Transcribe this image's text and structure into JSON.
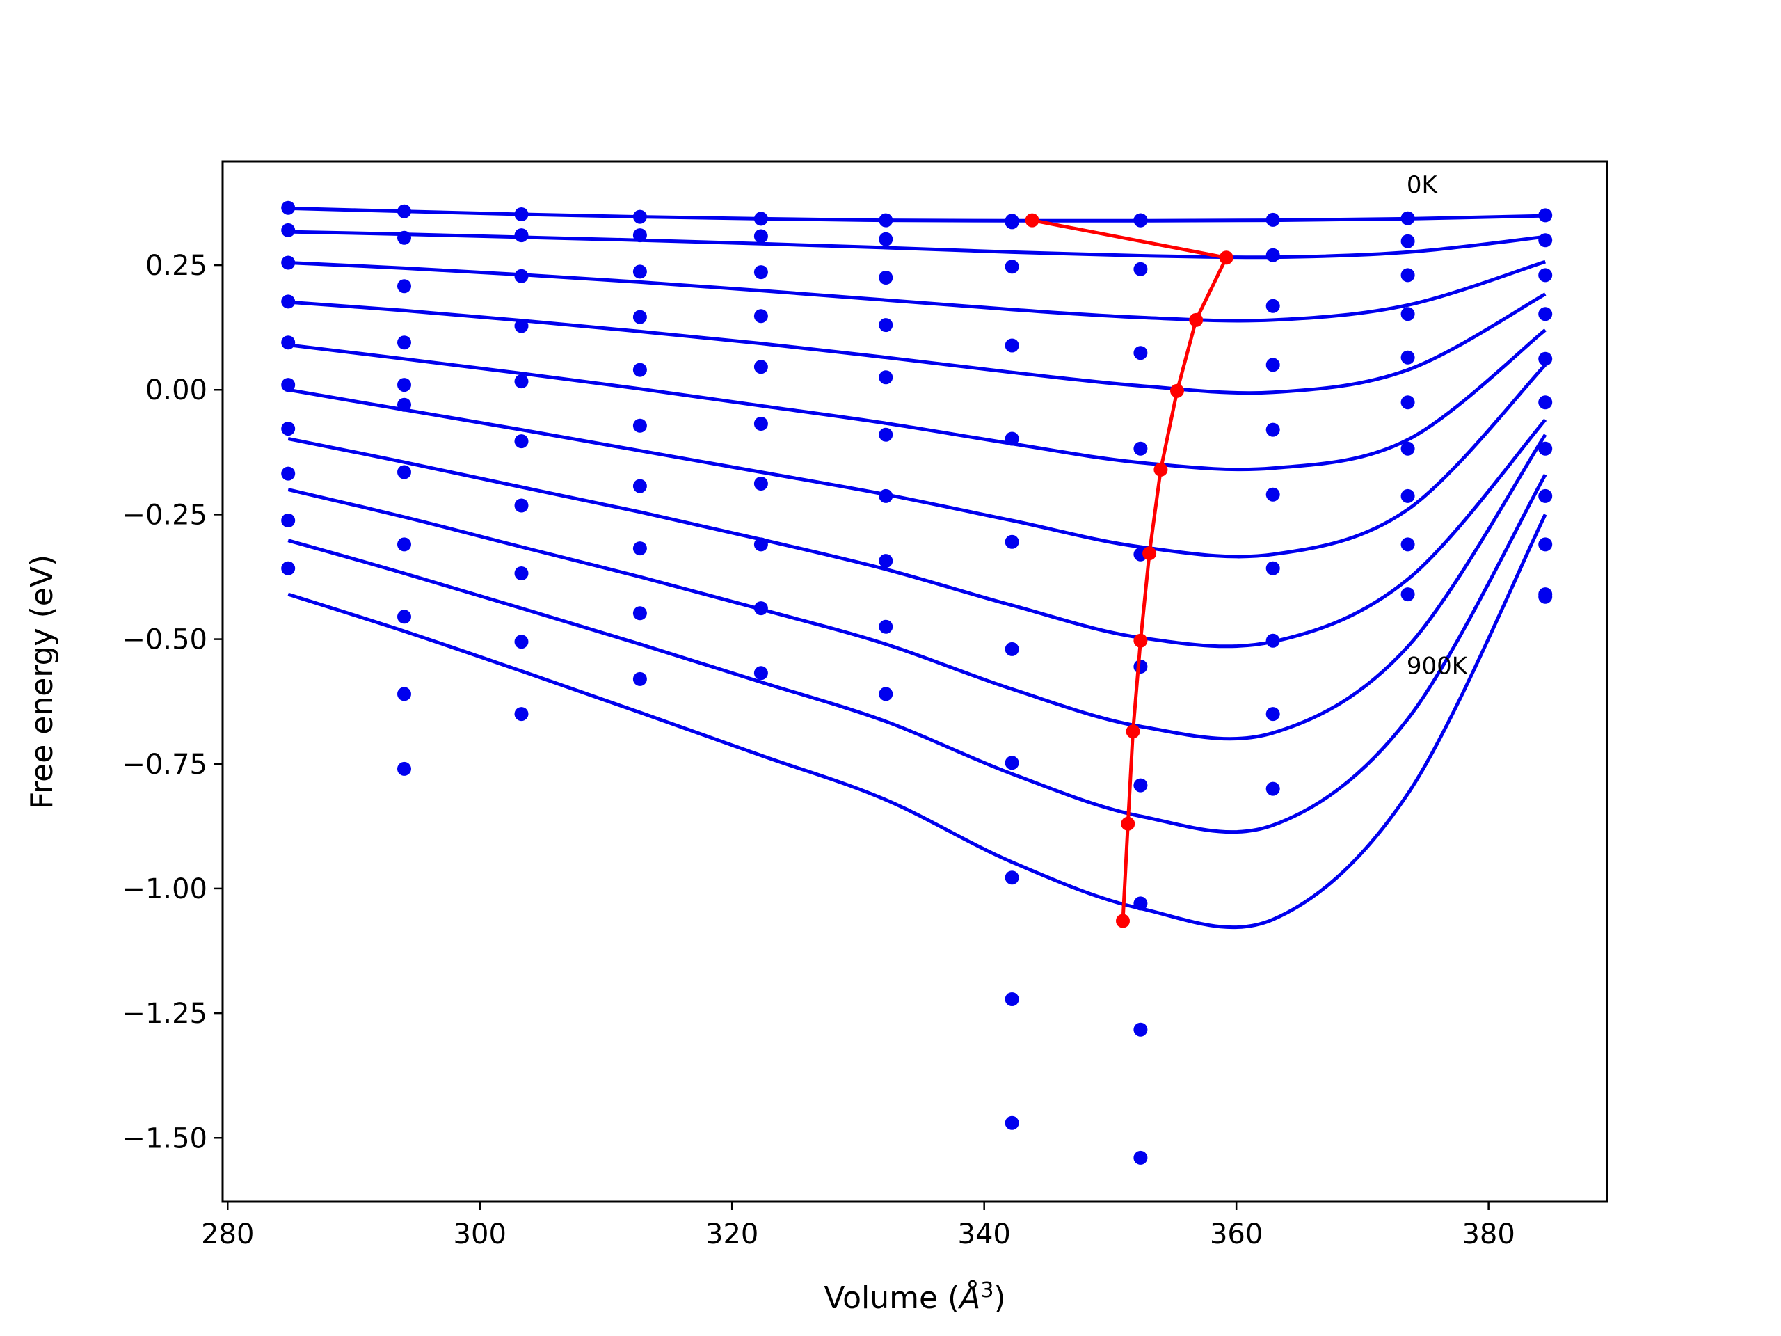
{
  "chart_data": {
    "type": "scatter",
    "xlabel": "Volume (",
    "xlabel_unit": "Å",
    "xlabel_exp": "3",
    "xlabel_close": ")",
    "ylabel": "Free energy (eV)",
    "xlim": [
      279.6,
      389.4
    ],
    "ylim": [
      -1.628,
      0.458
    ],
    "xticks": [
      280,
      300,
      320,
      340,
      360,
      380
    ],
    "xtick_labels": [
      "280",
      "300",
      "320",
      "340",
      "360",
      "380"
    ],
    "yticks": [
      0.25,
      0.0,
      -0.25,
      -0.5,
      -0.75,
      -1.0,
      -1.25,
      -1.5
    ],
    "ytick_labels": [
      "0.25",
      "0.00",
      "−0.25",
      "−0.50",
      "−0.75",
      "−1.00",
      "−1.25",
      "−1.50"
    ],
    "grid": false,
    "annotations": [
      {
        "text": "0K",
        "x": 373.5,
        "y": 0.395
      },
      {
        "text": "900K",
        "x": 373.5,
        "y": -0.57
      }
    ],
    "x": [
      284.8,
      294.0,
      303.3,
      312.7,
      322.3,
      332.2,
      342.2,
      352.4,
      362.9,
      373.6,
      384.5
    ],
    "series": [
      {
        "values": [
          0.365,
          0.358,
          0.352,
          0.347,
          0.343,
          0.34,
          0.339,
          0.34,
          0.341,
          0.344,
          0.35
        ],
        "curve_x": [
          284.8,
          294.0,
          303.3,
          312.7,
          322.3,
          332.2,
          342.2,
          352.4,
          362.9,
          373.6,
          384.5
        ],
        "curve_y": [
          0.364,
          0.358,
          0.352,
          0.347,
          0.343,
          0.34,
          0.339,
          0.339,
          0.34,
          0.343,
          0.349
        ]
      },
      {
        "values": [
          0.32,
          0.305,
          0.31,
          0.31,
          0.308,
          0.302,
          0.336,
          0.34,
          0.27,
          0.298,
          0.3
        ],
        "curve_x": [
          284.8,
          294.0,
          303.3,
          312.7,
          322.3,
          332.2,
          342.2,
          352.4,
          362.9,
          373.6,
          384.5
        ],
        "curve_y": [
          0.317,
          0.312,
          0.306,
          0.3,
          0.293,
          0.285,
          0.276,
          0.269,
          0.266,
          0.276,
          0.307
        ]
      },
      {
        "values": [
          0.255,
          0.208,
          0.228,
          0.237,
          0.236,
          0.225,
          0.247,
          0.242,
          0.168,
          0.23,
          0.23
        ],
        "curve_x": [
          284.8,
          294.0,
          303.3,
          312.7,
          322.3,
          332.2,
          342.2,
          352.4,
          362.9,
          373.6,
          384.5
        ],
        "curve_y": [
          0.255,
          0.244,
          0.231,
          0.216,
          0.199,
          0.18,
          0.161,
          0.145,
          0.14,
          0.17,
          0.257
        ]
      },
      {
        "values": [
          0.177,
          0.095,
          0.128,
          0.146,
          0.148,
          0.13,
          0.089,
          0.074,
          0.05,
          0.152,
          0.152
        ],
        "curve_x": [
          284.8,
          294.0,
          303.3,
          312.7,
          322.3,
          332.2,
          342.2,
          352.4,
          362.9,
          373.6,
          384.5
        ],
        "curve_y": [
          0.176,
          0.159,
          0.139,
          0.117,
          0.093,
          0.065,
          0.035,
          0.008,
          -0.005,
          0.04,
          0.192
        ]
      },
      {
        "values": [
          0.095,
          0.01,
          0.017,
          0.04,
          0.046,
          0.025,
          -0.098,
          -0.118,
          -0.08,
          0.065,
          0.062
        ],
        "curve_x": [
          284.8,
          294.0,
          303.3,
          312.7,
          322.3,
          332.2,
          342.2,
          352.4,
          362.9,
          373.6,
          384.5
        ],
        "curve_y": [
          0.09,
          0.062,
          0.033,
          0.002,
          -0.032,
          -0.067,
          -0.108,
          -0.146,
          -0.157,
          -0.1,
          0.12
        ]
      },
      {
        "values": [
          0.01,
          -0.03,
          -0.103,
          -0.072,
          -0.068,
          -0.09,
          -0.305,
          -0.33,
          -0.21,
          -0.025,
          -0.025
        ],
        "curve_x": [
          284.8,
          294.0,
          303.3,
          312.7,
          322.3,
          332.2,
          342.2,
          352.4,
          362.9,
          373.6,
          384.5
        ],
        "curve_y": [
          0.0,
          -0.04,
          -0.08,
          -0.122,
          -0.165,
          -0.21,
          -0.262,
          -0.315,
          -0.33,
          -0.24,
          0.05
        ]
      },
      {
        "values": [
          -0.078,
          -0.165,
          -0.232,
          -0.193,
          -0.188,
          -0.213,
          -0.52,
          -0.555,
          -0.358,
          -0.118,
          -0.118
        ],
        "curve_x": [
          284.8,
          294.0,
          303.3,
          312.7,
          322.3,
          332.2,
          342.2,
          352.4,
          362.9,
          373.6,
          384.5
        ],
        "curve_y": [
          -0.098,
          -0.145,
          -0.195,
          -0.245,
          -0.3,
          -0.36,
          -0.432,
          -0.497,
          -0.505,
          -0.38,
          -0.06
        ]
      },
      {
        "values": [
          -0.168,
          -0.31,
          -0.368,
          -0.318,
          -0.31,
          -0.343,
          -0.748,
          -0.793,
          -0.503,
          -0.213,
          -0.213
        ],
        "curve_x": [
          284.8,
          294.0,
          303.3,
          312.7,
          322.3,
          332.2,
          342.2,
          352.4,
          362.9,
          373.6,
          384.5
        ],
        "curve_y": [
          -0.2,
          -0.255,
          -0.315,
          -0.375,
          -0.44,
          -0.51,
          -0.6,
          -0.675,
          -0.688,
          -0.515,
          -0.09
        ]
      },
      {
        "values": [
          -0.262,
          -0.455,
          -0.505,
          -0.448,
          -0.438,
          -0.475,
          -0.978,
          -1.03,
          -0.65,
          -0.31,
          -0.31
        ],
        "curve_x": [
          284.8,
          294.0,
          303.3,
          312.7,
          322.3,
          332.2,
          342.2,
          352.4,
          362.9,
          373.6,
          384.5
        ],
        "curve_y": [
          -0.302,
          -0.368,
          -0.438,
          -0.51,
          -0.586,
          -0.665,
          -0.77,
          -0.855,
          -0.873,
          -0.66,
          -0.17
        ]
      },
      {
        "values": [
          -0.358,
          -0.61,
          -0.65,
          -0.58,
          -0.568,
          -0.61,
          -1.222,
          -1.283,
          -0.8,
          -0.41,
          -0.41
        ],
        "curve_x": [
          284.8,
          294.0,
          303.3,
          312.7,
          322.3,
          332.2,
          342.2,
          352.4,
          362.9,
          373.6,
          384.5
        ],
        "curve_y": [
          -0.41,
          -0.484,
          -0.564,
          -0.647,
          -0.733,
          -0.822,
          -0.947,
          -1.04,
          -1.062,
          -0.81,
          -0.25
        ]
      },
      {
        "values": [
          null,
          -0.76,
          null,
          null,
          null,
          null,
          -1.47,
          -1.54,
          null,
          null,
          -0.415
        ]
      }
    ],
    "minima": {
      "x": [
        343.8,
        359.2,
        356.8,
        355.3,
        354.0,
        353.1,
        352.4,
        351.8,
        351.4,
        351.0
      ],
      "y": [
        0.34,
        0.265,
        0.14,
        -0.002,
        -0.16,
        -0.328,
        -0.503,
        -0.685,
        -0.87,
        -1.065
      ]
    },
    "colors": {
      "points": "#0000ee",
      "curves": "#0000ee",
      "minima": "#ff0000"
    }
  }
}
